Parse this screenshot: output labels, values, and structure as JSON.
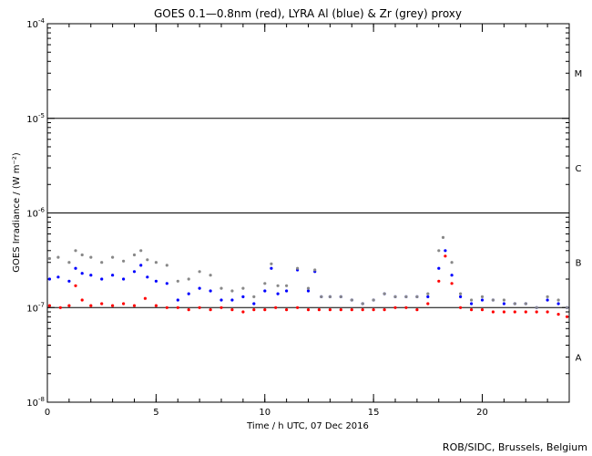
{
  "chart_data": {
    "type": "scatter",
    "title": "GOES 0.1—0.8nm (red), LYRA Al (blue) & Zr (grey) proxy",
    "xlabel": "Time / h UTC, 07 Dec 2016",
    "ylabel": "GOES Irradiance / (W m⁻²)",
    "xlim": [
      0,
      24
    ],
    "ylim": [
      1e-08,
      0.0001
    ],
    "yscale": "log",
    "xticks": [
      0,
      5,
      10,
      15,
      20
    ],
    "xtick_labels": [
      "0",
      "5",
      "10",
      "15",
      "20"
    ],
    "yticks": [
      1e-08,
      1e-07,
      1e-06,
      1e-05,
      0.0001
    ],
    "ytick_labels": [
      {
        "base": "10",
        "exp": "-8"
      },
      {
        "base": "10",
        "exp": "-7"
      },
      {
        "base": "10",
        "exp": "-6"
      },
      {
        "base": "10",
        "exp": "-5"
      },
      {
        "base": "10",
        "exp": "-4"
      }
    ],
    "reference_lines": [
      1e-07,
      1e-06,
      1e-05
    ],
    "flare_classes": [
      {
        "label": "A",
        "y": 3e-08
      },
      {
        "label": "B",
        "y": 3e-07
      },
      {
        "label": "C",
        "y": 3e-06
      },
      {
        "label": "M",
        "y": 3e-05
      }
    ],
    "series": [
      {
        "name": "GOES 0.1—0.8nm",
        "color": "#ff0000",
        "x": [
          0.1,
          0.6,
          1.0,
          1.3,
          1.6,
          2.0,
          2.5,
          3.0,
          3.5,
          4.0,
          4.5,
          5.0,
          5.5,
          6.0,
          6.5,
          7.0,
          7.5,
          8.0,
          8.5,
          9.0,
          9.5,
          10.0,
          10.5,
          11.0,
          11.5,
          12.0,
          12.5,
          13.0,
          13.5,
          14.0,
          14.5,
          15.0,
          15.5,
          16.0,
          16.5,
          17.0,
          17.5,
          18.0,
          18.3,
          18.6,
          19.0,
          19.5,
          20.0,
          20.5,
          21.0,
          21.5,
          22.0,
          22.5,
          23.0,
          23.5,
          23.9
        ],
        "y": [
          1.05e-07,
          1e-07,
          1.05e-07,
          1.7e-07,
          1.2e-07,
          1.05e-07,
          1.1e-07,
          1.05e-07,
          1.1e-07,
          1.05e-07,
          1.25e-07,
          1.05e-07,
          1e-07,
          1e-07,
          9.5e-08,
          1e-07,
          9.5e-08,
          1e-07,
          9.5e-08,
          9e-08,
          9.5e-08,
          9.5e-08,
          1e-07,
          9.5e-08,
          1e-07,
          9.5e-08,
          9.5e-08,
          9.5e-08,
          9.5e-08,
          9.5e-08,
          9.5e-08,
          9.5e-08,
          9.5e-08,
          1e-07,
          1e-07,
          9.5e-08,
          1.1e-07,
          1.9e-07,
          3.5e-07,
          1.8e-07,
          1e-07,
          9.5e-08,
          9.5e-08,
          9e-08,
          9e-08,
          9e-08,
          9e-08,
          9e-08,
          9e-08,
          8.5e-08,
          8e-08
        ]
      },
      {
        "name": "LYRA Al",
        "color": "#0000ff",
        "x": [
          0.1,
          0.5,
          1.0,
          1.3,
          1.6,
          2.0,
          2.5,
          3.0,
          3.5,
          4.0,
          4.3,
          4.6,
          5.0,
          5.5,
          6.0,
          6.5,
          7.0,
          7.5,
          8.0,
          8.5,
          9.0,
          9.5,
          10.0,
          10.3,
          10.6,
          11.0,
          11.5,
          12.0,
          12.3,
          12.6,
          13.0,
          13.5,
          14.0,
          14.5,
          15.0,
          15.5,
          16.0,
          16.5,
          17.0,
          17.5,
          18.0,
          18.3,
          18.6,
          19.0,
          19.5,
          20.0,
          20.5,
          21.0,
          21.5,
          22.0,
          22.5,
          23.0,
          23.5,
          23.9
        ],
        "y": [
          2e-07,
          2.1e-07,
          1.9e-07,
          2.6e-07,
          2.3e-07,
          2.2e-07,
          2e-07,
          2.2e-07,
          2e-07,
          2.4e-07,
          2.8e-07,
          2.1e-07,
          1.9e-07,
          1.8e-07,
          1.2e-07,
          1.4e-07,
          1.6e-07,
          1.5e-07,
          1.2e-07,
          1.2e-07,
          1.3e-07,
          1.1e-07,
          1.5e-07,
          2.6e-07,
          1.4e-07,
          1.5e-07,
          2.5e-07,
          1.5e-07,
          2.4e-07,
          1.3e-07,
          1.3e-07,
          1.3e-07,
          1.2e-07,
          1.1e-07,
          1.2e-07,
          1.4e-07,
          1.3e-07,
          1.3e-07,
          1.3e-07,
          1.3e-07,
          2.6e-07,
          4e-07,
          2.2e-07,
          1.3e-07,
          1.1e-07,
          1.2e-07,
          1.2e-07,
          1.1e-07,
          1.1e-07,
          1.1e-07,
          1e-07,
          1.2e-07,
          1.1e-07,
          1e-07
        ]
      },
      {
        "name": "LYRA Zr",
        "color": "#888888",
        "x": [
          0.1,
          0.5,
          1.0,
          1.3,
          1.6,
          2.0,
          2.5,
          3.0,
          3.5,
          4.0,
          4.3,
          4.6,
          5.0,
          5.5,
          6.0,
          6.5,
          7.0,
          7.5,
          8.0,
          8.5,
          9.0,
          9.5,
          10.0,
          10.3,
          10.6,
          11.0,
          11.5,
          12.0,
          12.3,
          12.6,
          13.0,
          13.5,
          14.0,
          14.5,
          15.0,
          15.5,
          16.0,
          16.5,
          17.0,
          17.5,
          18.0,
          18.2,
          18.6,
          19.0,
          19.5,
          20.0,
          20.5,
          21.0,
          21.5,
          22.0,
          22.5,
          23.0,
          23.5,
          23.9
        ],
        "y": [
          3.3e-07,
          3.4e-07,
          3e-07,
          4e-07,
          3.6e-07,
          3.4e-07,
          3e-07,
          3.4e-07,
          3.1e-07,
          3.6e-07,
          4e-07,
          3.2e-07,
          3e-07,
          2.8e-07,
          1.9e-07,
          2e-07,
          2.4e-07,
          2.2e-07,
          1.6e-07,
          1.5e-07,
          1.6e-07,
          1.3e-07,
          1.8e-07,
          2.9e-07,
          1.7e-07,
          1.7e-07,
          2.6e-07,
          1.6e-07,
          2.5e-07,
          1.3e-07,
          1.3e-07,
          1.3e-07,
          1.2e-07,
          1.1e-07,
          1.2e-07,
          1.4e-07,
          1.3e-07,
          1.3e-07,
          1.3e-07,
          1.4e-07,
          4e-07,
          5.5e-07,
          3e-07,
          1.4e-07,
          1.2e-07,
          1.3e-07,
          1.2e-07,
          1.2e-07,
          1.1e-07,
          1.1e-07,
          1e-07,
          1.3e-07,
          1.2e-07,
          1e-07
        ]
      }
    ]
  },
  "footer": {
    "credit": "ROB/SIDC, Brussels, Belgium"
  }
}
